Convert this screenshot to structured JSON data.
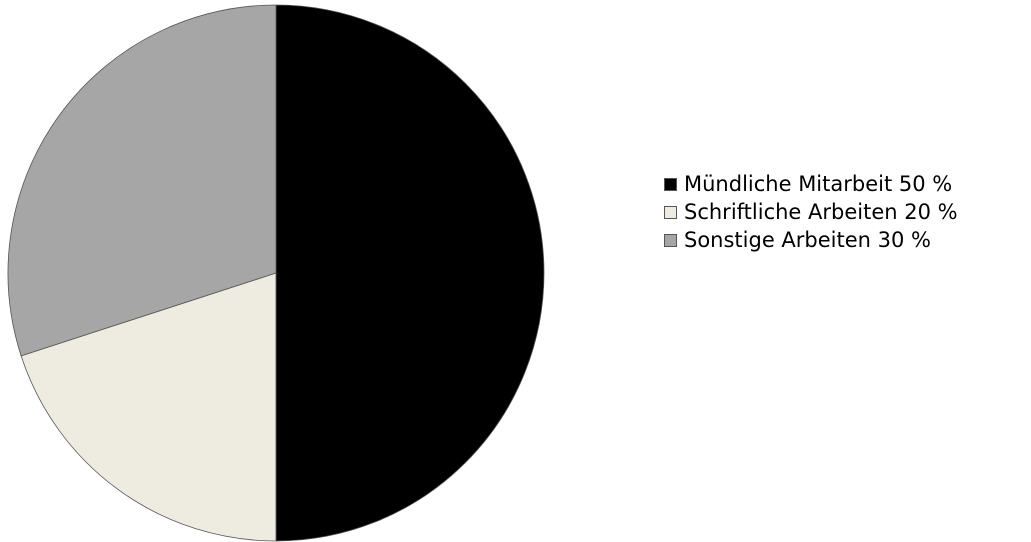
{
  "chart_data": {
    "type": "pie",
    "title": "",
    "start_angle_deg": 0,
    "direction": "clockwise",
    "slices": [
      {
        "label": "Mündliche Mitarbeit 50 %",
        "value": 50,
        "color": "#000000"
      },
      {
        "label": "Schriftliche Arbeiten 20 %",
        "value": 20,
        "color": "#eeebe1"
      },
      {
        "label": "Sonstige Arbeiten 30 %",
        "value": 30,
        "color": "#a6a6a6"
      }
    ],
    "legend": "right"
  }
}
